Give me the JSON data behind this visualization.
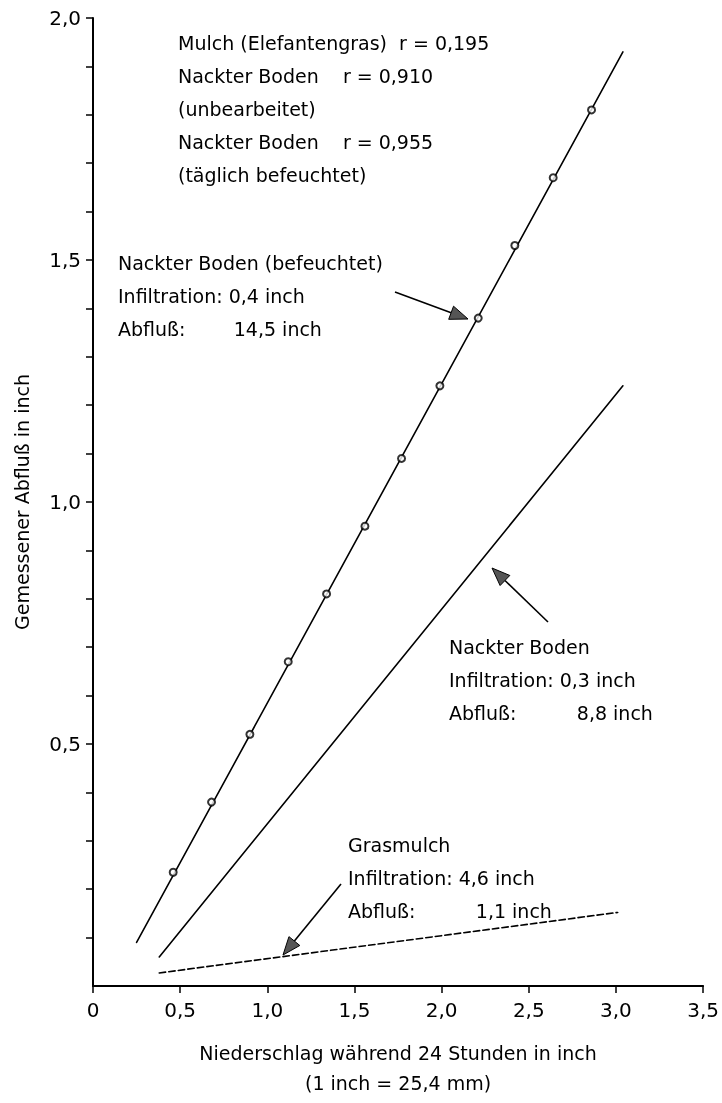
{
  "chart_data": {
    "type": "line",
    "xlabel": "Niederschlag während 24 Stunden in inch\n(1 inch = 25,4 mm)",
    "ylabel": "Gemessener Abfluß in inch",
    "xlim": [
      0,
      3.5
    ],
    "xticks": [
      0,
      {
        "value": 0.5,
        "label": "0,5"
      },
      {
        "value": 1.0,
        "label": "1,0"
      },
      {
        "value": 1.5,
        "label": "1,5"
      },
      {
        "value": 2.0,
        "label": "2,0"
      },
      {
        "value": 2.5,
        "label": "2,5"
      },
      {
        "value": 3.0,
        "label": "3,0"
      },
      {
        "value": 3.5,
        "label": "3,5"
      }
    ],
    "ylim": [
      0,
      2.0
    ],
    "yticks": [
      {
        "value": 0.1,
        "label": null
      },
      {
        "value": 0.2,
        "label": null
      },
      {
        "value": 0.3,
        "label": null
      },
      {
        "value": 0.4,
        "label": null
      },
      {
        "value": 0.5,
        "label": "0,5"
      },
      {
        "value": 0.6,
        "label": null
      },
      {
        "value": 0.7,
        "label": null
      },
      {
        "value": 0.8,
        "label": null
      },
      {
        "value": 0.9,
        "label": null
      },
      {
        "value": 1.0,
        "label": "1,0"
      },
      {
        "value": 1.1,
        "label": null
      },
      {
        "value": 1.2,
        "label": null
      },
      {
        "value": 1.3,
        "label": null
      },
      {
        "value": 1.4,
        "label": null
      },
      {
        "value": 1.5,
        "label": "1,5"
      },
      {
        "value": 1.6,
        "label": null
      },
      {
        "value": 1.7,
        "label": null
      },
      {
        "value": 1.8,
        "label": null
      },
      {
        "value": 1.9,
        "label": null
      },
      {
        "value": 2.0,
        "label": "2,0"
      }
    ],
    "grid": false,
    "series": [
      {
        "x": [
          0.25,
          3.04
        ],
        "values": [
          0.09,
          1.93
        ],
        "color": "#000000",
        "marker": "none",
        "line_style": "solid"
      },
      {
        "type": "scatter",
        "x": [
          0.46,
          0.68,
          0.9,
          1.12,
          1.34,
          1.56,
          1.77,
          1.99,
          2.21,
          2.42,
          2.64,
          2.86
        ],
        "values": [
          0.235,
          0.38,
          0.52,
          0.67,
          0.81,
          0.95,
          1.09,
          1.24,
          1.38,
          1.53,
          1.67,
          1.81
        ],
        "color": "#000000",
        "marker": "circle"
      },
      {
        "x": [
          0.38,
          3.04
        ],
        "values": [
          0.06,
          1.24
        ],
        "color": "#000000",
        "marker": "none",
        "line_style": "solid"
      },
      {
        "x": [
          0.38,
          3.01
        ],
        "values": [
          0.027,
          0.152
        ],
        "color": "#000000",
        "marker": "none",
        "line_style": "dashed"
      }
    ],
    "annotations": [
      "Mulch (Elefantengras)  r = 0,195\nNackter Boden    r = 0,910\n(unbearbeitet)\nNackter Boden    r = 0,955\n(täglich befeuchtet)",
      "Nackter Boden (befeuchtet)\nInfiltration: 0,4 inch\nAbfluß:        14,5 inch",
      "Nackter Boden\nInfiltration: 0,3 inch\nAbfluß:          8,8 inch",
      "Grasmulch\nInfiltration: 4,6 inch\nAbfluß:          1,1 inch"
    ]
  }
}
